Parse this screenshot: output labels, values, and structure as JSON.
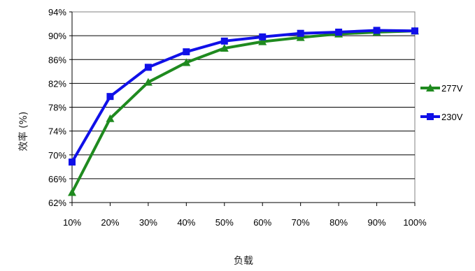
{
  "chart_data": {
    "type": "line",
    "categories": [
      "10%",
      "20%",
      "30%",
      "40%",
      "50%",
      "60%",
      "70%",
      "80%",
      "90%",
      "100%"
    ],
    "series": [
      {
        "name": "277V",
        "color": "#1f8a1f",
        "marker": "triangle",
        "values": [
          63.7,
          76.1,
          82.2,
          85.5,
          87.9,
          89.0,
          89.7,
          90.3,
          90.6,
          90.8
        ]
      },
      {
        "name": "230V",
        "color": "#1010e8",
        "marker": "square",
        "values": [
          68.8,
          79.8,
          84.7,
          87.3,
          89.1,
          89.8,
          90.4,
          90.6,
          90.9,
          90.8
        ]
      }
    ],
    "ylim": [
      62,
      94
    ],
    "yticks": [
      62,
      66,
      70,
      74,
      78,
      82,
      86,
      90,
      94
    ],
    "ytick_labels": [
      "62%",
      "66%",
      "70%",
      "74%",
      "78%",
      "82%",
      "86%",
      "90%",
      "94%"
    ],
    "xlabel": "负载",
    "ylabel": "效率 (%)",
    "grid": true,
    "legend_position": "right"
  }
}
